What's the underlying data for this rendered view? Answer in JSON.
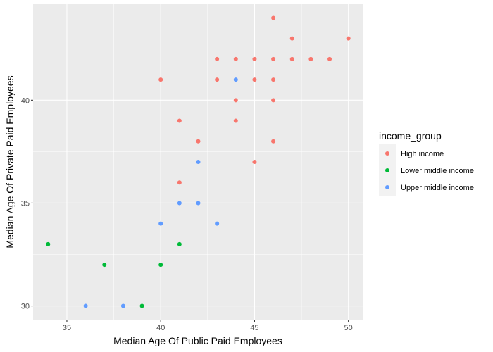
{
  "chart_data": {
    "type": "scatter",
    "xlabel": "Median Age Of Public Paid Employees",
    "ylabel": "Median Age Of Private Paid Employees",
    "xlim": [
      33.2,
      50.8
    ],
    "ylim": [
      29.3,
      44.7
    ],
    "x_ticks": [
      35,
      40,
      45,
      50
    ],
    "y_ticks": [
      30,
      35,
      40
    ],
    "grid": true,
    "legend_position": "right",
    "legend_title": "income_group",
    "series": [
      {
        "name": "High income",
        "color": "#F8766D",
        "points": [
          [
            46,
            44
          ],
          [
            47,
            43
          ],
          [
            50,
            43
          ],
          [
            43,
            42
          ],
          [
            44,
            42
          ],
          [
            45,
            42
          ],
          [
            46,
            42
          ],
          [
            47,
            42
          ],
          [
            48,
            42
          ],
          [
            49,
            42
          ],
          [
            40,
            41
          ],
          [
            43,
            41
          ],
          [
            45,
            41
          ],
          [
            46,
            41
          ],
          [
            44,
            40
          ],
          [
            46,
            40
          ],
          [
            41,
            39
          ],
          [
            44,
            39
          ],
          [
            42,
            38
          ],
          [
            46,
            38
          ],
          [
            45,
            37
          ],
          [
            41,
            36
          ]
        ]
      },
      {
        "name": "Lower middle income",
        "color": "#00BA38",
        "points": [
          [
            34,
            33
          ],
          [
            41,
            33
          ],
          [
            37,
            32
          ],
          [
            40,
            32
          ],
          [
            39,
            30
          ]
        ]
      },
      {
        "name": "Upper middle income",
        "color": "#619CFF",
        "points": [
          [
            44,
            41
          ],
          [
            42,
            37
          ],
          [
            41,
            35
          ],
          [
            42,
            35
          ],
          [
            40,
            34
          ],
          [
            43,
            34
          ],
          [
            36,
            30
          ],
          [
            38,
            30
          ]
        ]
      }
    ]
  }
}
